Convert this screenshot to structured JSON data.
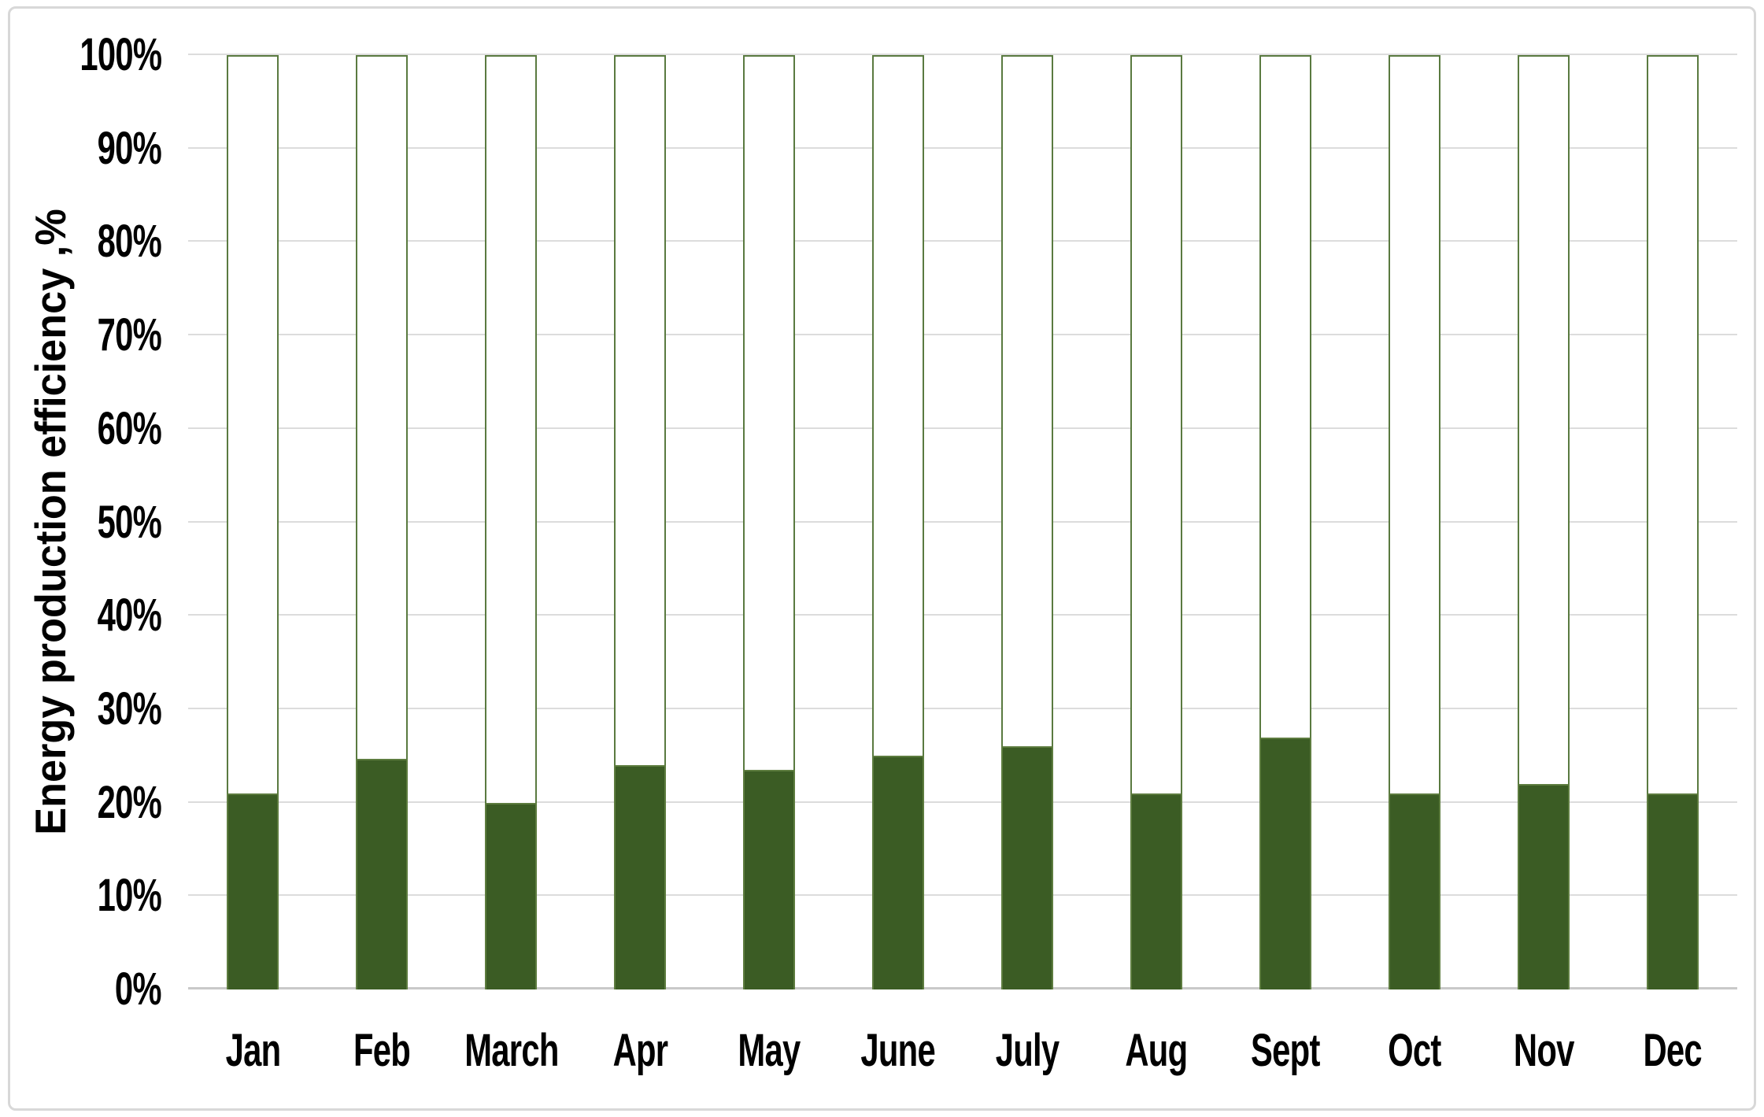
{
  "chart_data": {
    "type": "bar",
    "subtype": "stacked-100-percent-column",
    "title": "",
    "xlabel": "",
    "ylabel": "Energy production efficiency ,%",
    "categories": [
      "Jan",
      "Feb",
      "March",
      "Apr",
      "May",
      "June",
      "July",
      "Aug",
      "Sept",
      "Oct",
      "Nov",
      "Dec"
    ],
    "series": [
      {
        "name": "energy-production-efficiency-fill",
        "color": "#3b5c24",
        "border_color": "#5d7c3f",
        "values": [
          21.0,
          24.7,
          20.0,
          24.0,
          23.5,
          25.0,
          26.0,
          21.0,
          27.0,
          21.0,
          22.0,
          21.0
        ]
      },
      {
        "name": "remainder-to-100-percent-outline",
        "color": "#ffffff",
        "border_color": "#5a7a40",
        "values": [
          79.0,
          75.3,
          80.0,
          76.0,
          76.5,
          75.0,
          74.0,
          79.0,
          73.0,
          79.0,
          78.0,
          79.0
        ]
      }
    ],
    "y_axis": {
      "min": 0,
      "max": 100,
      "step": 10,
      "tick_labels": [
        "0%",
        "10%",
        "20%",
        "30%",
        "40%",
        "50%",
        "60%",
        "70%",
        "80%",
        "90%",
        "100%"
      ]
    },
    "grid": true,
    "legend_position": "none",
    "colors": {
      "bar_fill": "#3b5c24",
      "bar_border": "#5a7a40",
      "gridline": "#dcdcdc",
      "axis_line": "#c9c9c9",
      "text": "#000000",
      "frame_border": "#d8d8d8",
      "background": "#ffffff"
    }
  }
}
